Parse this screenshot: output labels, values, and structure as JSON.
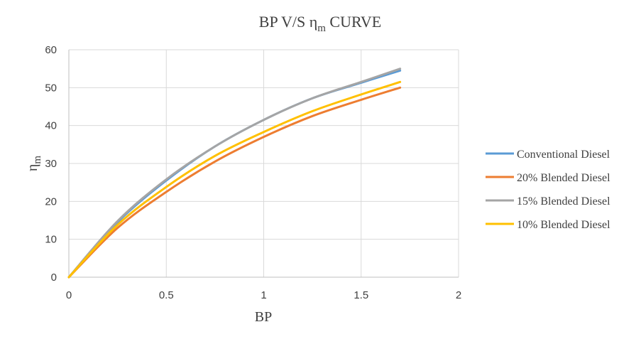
{
  "chart_data": {
    "type": "line",
    "title": "BP V/S ηm CURVE",
    "title_parts": {
      "main": "BP V/S η",
      "sub": "m",
      "after": " CURVE"
    },
    "xlabel": "BP",
    "ylabel": "ηm",
    "ylabel_parts": {
      "main": "η",
      "sub": "m"
    },
    "xlim": [
      0,
      2
    ],
    "ylim": [
      0,
      60
    ],
    "x_ticks": [
      0,
      0.5,
      1,
      1.5,
      2
    ],
    "x_tick_labels": [
      "0",
      "0.5",
      "1",
      "1.5",
      "2"
    ],
    "y_ticks": [
      0,
      10,
      20,
      30,
      40,
      50,
      60
    ],
    "y_tick_labels": [
      "0",
      "10",
      "20",
      "30",
      "40",
      "50",
      "60"
    ],
    "grid": true,
    "legend_position": "right",
    "series": [
      {
        "name": "Conventional Diesel",
        "color": "#5B9BD5",
        "x": [
          0,
          0.25,
          0.5,
          0.75,
          1.0,
          1.25,
          1.5,
          1.7
        ],
        "y": [
          0,
          14.5,
          25.5,
          34.5,
          41.5,
          47.2,
          51.3,
          54.5
        ]
      },
      {
        "name": "20% Blended Diesel",
        "color": "#ED7D31",
        "x": [
          0,
          0.25,
          0.5,
          0.75,
          1.0,
          1.25,
          1.5,
          1.7
        ],
        "y": [
          0,
          13.0,
          22.5,
          30.5,
          37.0,
          42.5,
          46.8,
          50.0
        ]
      },
      {
        "name": "15% Blended Diesel",
        "color": "#A5A5A5",
        "x": [
          0,
          0.25,
          0.5,
          0.75,
          1.0,
          1.25,
          1.5,
          1.7
        ],
        "y": [
          0,
          14.8,
          25.8,
          34.5,
          41.5,
          47.2,
          51.5,
          55.0
        ]
      },
      {
        "name": "10% Blended Diesel",
        "color": "#FFC000",
        "x": [
          0,
          0.25,
          0.5,
          0.75,
          1.0,
          1.25,
          1.5,
          1.7
        ],
        "y": [
          0,
          13.8,
          23.8,
          32.0,
          38.3,
          43.8,
          48.2,
          51.5
        ]
      }
    ]
  }
}
